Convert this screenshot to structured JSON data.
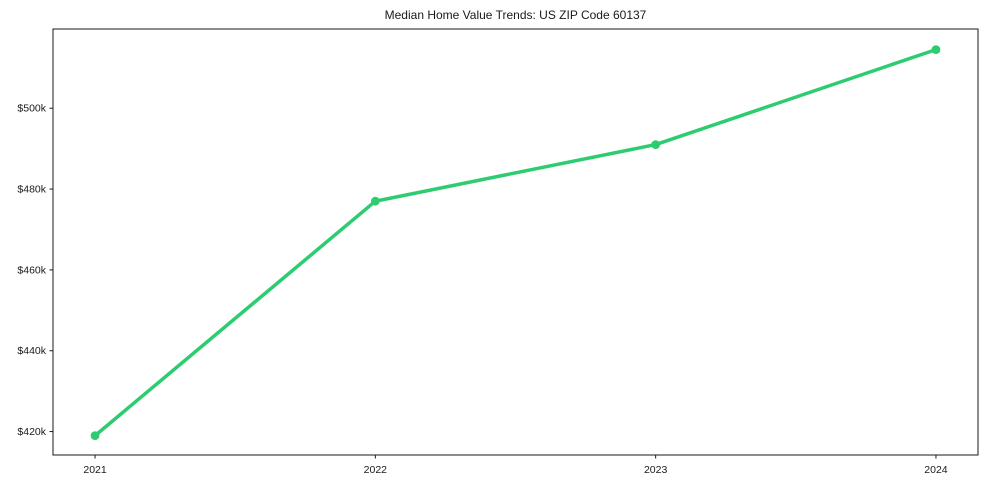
{
  "chart_data": {
    "type": "line",
    "title": "Median Home Value Trends: US ZIP Code 60137",
    "categories": [
      "2021",
      "2022",
      "2023",
      "2024"
    ],
    "series": [
      {
        "name": "Median Home Value",
        "values": [
          419000,
          477000,
          491000,
          514500
        ],
        "color": "#2ecc71",
        "marker": "circle"
      }
    ],
    "xlabel": "",
    "ylabel": "",
    "ylim": [
      414200,
      519600
    ],
    "yticks": [
      {
        "value": 420000,
        "label": "$420k"
      },
      {
        "value": 440000,
        "label": "$440k"
      },
      {
        "value": 460000,
        "label": "$460k"
      },
      {
        "value": 480000,
        "label": "$480k"
      },
      {
        "value": 500000,
        "label": "$500k"
      }
    ],
    "grid": false,
    "legend_position": "none",
    "axis_color": "#1a1a1a",
    "text_color": "#1a1a1a",
    "background_color": "#ffffff"
  }
}
